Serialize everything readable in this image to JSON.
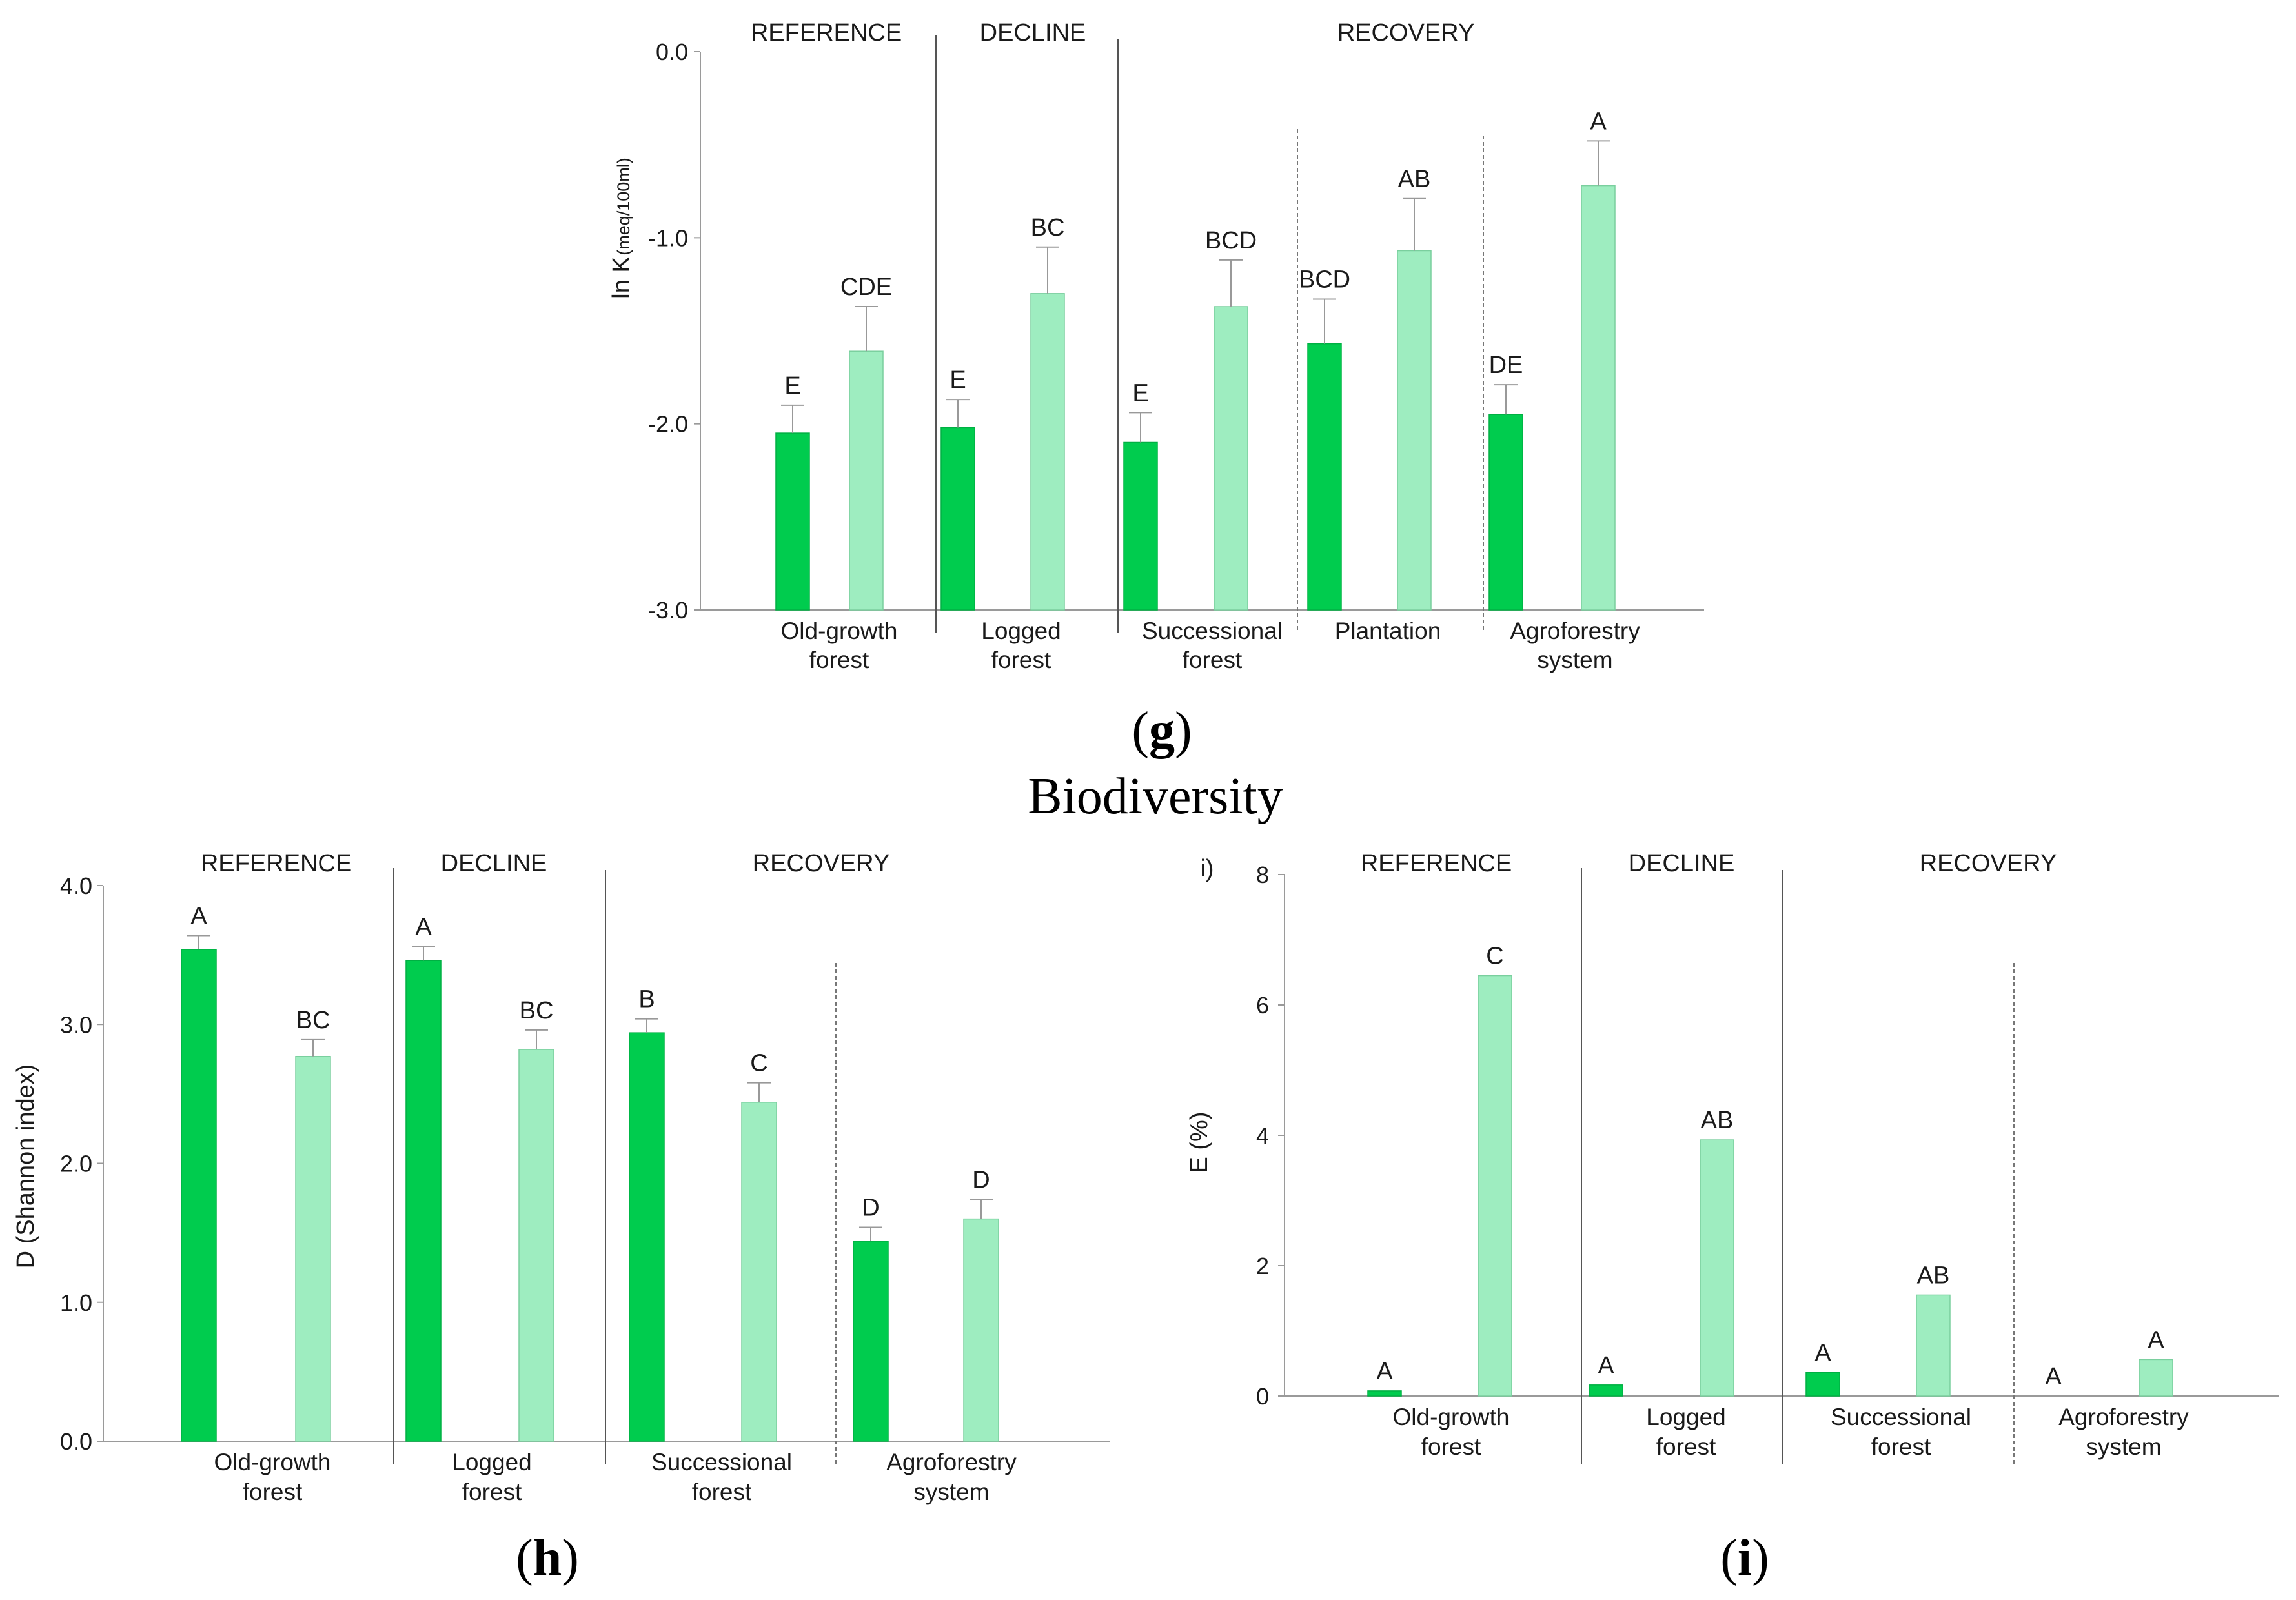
{
  "section_title": "Biodiversity",
  "colors": {
    "dark_green": "#00CC4E",
    "light_green": "#9EEDC0",
    "axis": "#9a9a9a",
    "divider": "#555555",
    "errorbar": "#999999"
  },
  "chart_data": [
    {
      "id": "g",
      "type": "bar",
      "panel_label_open": "(",
      "panel_label_letter": "g",
      "panel_label_close": ")",
      "inline_label": "",
      "ylabel": "ln K",
      "ylabel_unit": "(meq/100ml)",
      "ylim": [
        -3.0,
        0.0
      ],
      "yticks": [
        0.0,
        -1.0,
        -2.0,
        -3.0
      ],
      "ytick_labels": [
        "0.0",
        "-1.0",
        "-2.0",
        "-3.0"
      ],
      "categories": [
        [
          "Old-growth",
          "forest"
        ],
        [
          "Logged",
          "forest"
        ],
        [
          "Successional",
          "forest"
        ],
        [
          "Plantation"
        ],
        [
          "Agroforestry",
          "system"
        ]
      ],
      "series": [
        {
          "name": "dark",
          "values": [
            -2.05,
            -2.02,
            -2.1,
            -1.57,
            -1.95
          ],
          "errors": [
            0.15,
            0.15,
            0.16,
            0.24,
            0.16
          ],
          "letters": [
            "E",
            "E",
            "E",
            "BCD",
            "DE"
          ]
        },
        {
          "name": "light",
          "values": [
            -1.61,
            -1.3,
            -1.37,
            -1.07,
            -0.72
          ],
          "errors": [
            0.24,
            0.25,
            0.25,
            0.28,
            0.24
          ],
          "letters": [
            "CDE",
            "BC",
            "BCD",
            "AB",
            "A"
          ]
        }
      ],
      "groups": [
        {
          "label": "REFERENCE",
          "from": 0,
          "to": 0
        },
        {
          "label": "DECLINE",
          "from": 1,
          "to": 1
        },
        {
          "label": "RECOVERY",
          "from": 2,
          "to": 4
        }
      ]
    },
    {
      "id": "h",
      "type": "bar",
      "panel_label_open": "(",
      "panel_label_letter": "h",
      "panel_label_close": ")",
      "inline_label": "",
      "ylabel": "D (Shannon index)",
      "ylabel_unit": "",
      "ylim": [
        0.0,
        4.0
      ],
      "yticks": [
        0.0,
        1.0,
        2.0,
        3.0,
        4.0
      ],
      "ytick_labels": [
        "0.0",
        "1.0",
        "2.0",
        "3.0",
        "4.0"
      ],
      "categories": [
        [
          "Old-growth",
          "forest"
        ],
        [
          "Logged",
          "forest"
        ],
        [
          "Successional",
          "forest"
        ],
        [
          "Agroforestry",
          "system"
        ]
      ],
      "series": [
        {
          "name": "dark",
          "values": [
            3.54,
            3.46,
            2.94,
            1.44
          ],
          "errors": [
            0.1,
            0.1,
            0.1,
            0.1
          ],
          "letters": [
            "A",
            "A",
            "B",
            "D"
          ]
        },
        {
          "name": "light",
          "values": [
            2.77,
            2.82,
            2.44,
            1.6
          ],
          "errors": [
            0.12,
            0.14,
            0.14,
            0.14
          ],
          "letters": [
            "BC",
            "BC",
            "C",
            "D"
          ]
        }
      ],
      "groups": [
        {
          "label": "REFERENCE",
          "from": 0,
          "to": 0
        },
        {
          "label": "DECLINE",
          "from": 1,
          "to": 1
        },
        {
          "label": "RECOVERY",
          "from": 2,
          "to": 3
        }
      ]
    },
    {
      "id": "i",
      "type": "bar",
      "panel_label_open": "(",
      "panel_label_letter": "i",
      "panel_label_close": ")",
      "inline_label": "i)",
      "ylabel": "E (%)",
      "ylabel_unit": "",
      "ylim": [
        0,
        8
      ],
      "yticks": [
        0,
        2,
        4,
        6,
        8
      ],
      "ytick_labels": [
        "0",
        "2",
        "4",
        "6",
        "8"
      ],
      "categories": [
        [
          "Old-growth",
          "forest"
        ],
        [
          "Logged",
          "forest"
        ],
        [
          "Successional",
          "forest"
        ],
        [
          "Agroforestry",
          "system"
        ]
      ],
      "series": [
        {
          "name": "dark",
          "values": [
            0.08,
            0.17,
            0.36,
            0.0
          ],
          "errors": [
            0,
            0,
            0,
            0
          ],
          "letters": [
            "A",
            "A",
            "A",
            "A"
          ]
        },
        {
          "name": "light",
          "values": [
            6.45,
            3.93,
            1.55,
            0.56
          ],
          "errors": [
            0,
            0,
            0,
            0
          ],
          "letters": [
            "C",
            "AB",
            "AB",
            "A"
          ]
        }
      ],
      "groups": [
        {
          "label": "REFERENCE",
          "from": 0,
          "to": 0
        },
        {
          "label": "DECLINE",
          "from": 1,
          "to": 1
        },
        {
          "label": "RECOVERY",
          "from": 2,
          "to": 3
        }
      ]
    }
  ]
}
